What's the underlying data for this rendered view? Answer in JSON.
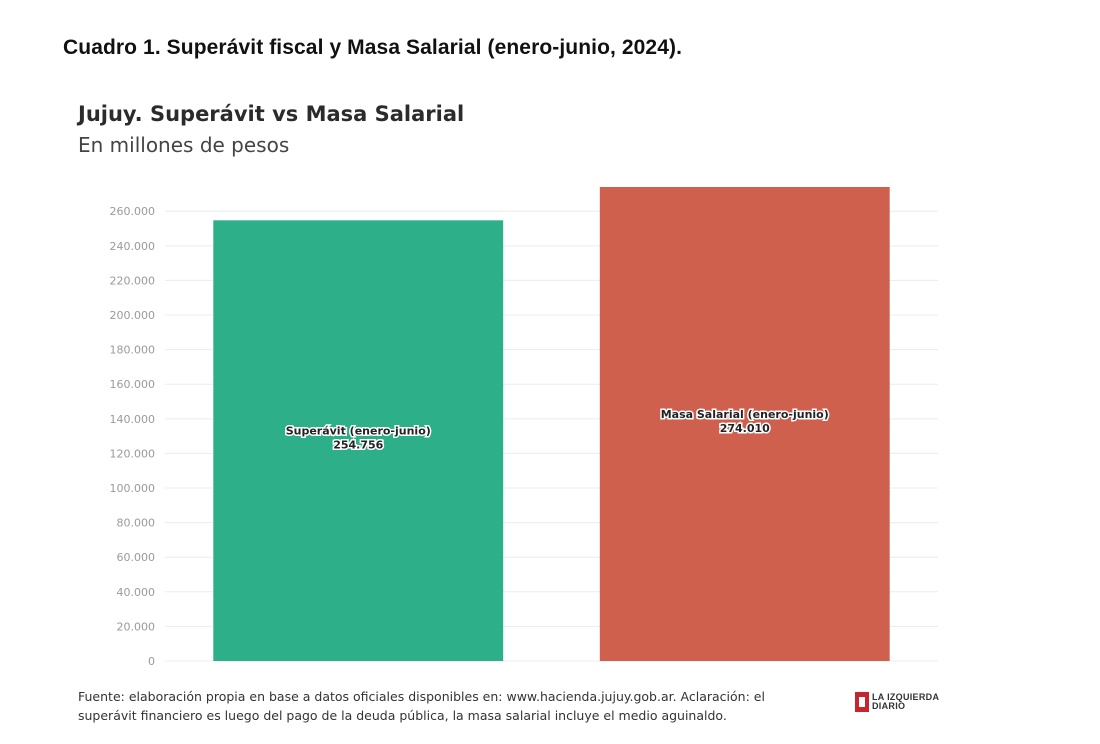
{
  "document": {
    "caption": "Cuadro 1. Superávit fiscal y Masa Salarial (enero-junio, 2024)."
  },
  "chart_data": {
    "type": "bar",
    "title": "Jujuy. Superávit vs Masa Salarial",
    "subtitle": "En millones de pesos",
    "categories": [
      "Superávit (enero-junio)",
      "Masa Salarial (enero-junio)"
    ],
    "values": [
      254756,
      274010
    ],
    "value_labels": [
      "254.756",
      "274.010"
    ],
    "colors": [
      "#2db08a",
      "#d0604e"
    ],
    "ylim": [
      0,
      274010
    ],
    "yticks": [
      0,
      20000,
      40000,
      60000,
      80000,
      100000,
      120000,
      140000,
      160000,
      180000,
      200000,
      220000,
      240000,
      260000
    ],
    "ytick_labels": [
      "0",
      "20.000",
      "40.000",
      "60.000",
      "80.000",
      "100.000",
      "120.000",
      "140.000",
      "160.000",
      "180.000",
      "200.000",
      "220.000",
      "240.000",
      "260.000"
    ],
    "grid": true,
    "legend": "none",
    "xlabel": "",
    "ylabel": ""
  },
  "footnote": {
    "line1": "Fuente: elaboración propia en base a datos oficiales disponibles en: www.hacienda.jujuy.gob.ar. Aclaración: el",
    "line2": "superávit financiero es luego del pago de la deuda pública, la masa salarial incluye el medio aguinaldo."
  },
  "logo": {
    "line1": "LA IZQUIERDA",
    "line2": "DIARIO",
    "icon": "la-izquierda-diario-logo-icon"
  }
}
